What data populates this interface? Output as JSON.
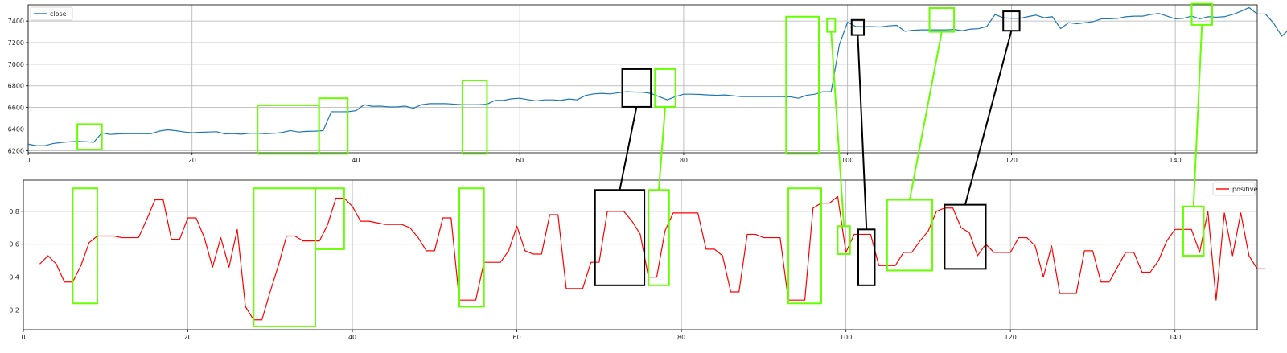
{
  "chart_data": [
    {
      "type": "line",
      "xlim": [
        0,
        150
      ],
      "ylim": [
        6180,
        7550
      ],
      "xticks": [
        0,
        20,
        40,
        60,
        80,
        100,
        120,
        140
      ],
      "yticks": [
        6200,
        6400,
        6600,
        6800,
        7000,
        7200,
        7400
      ],
      "grid": true,
      "legend_position": "top-left",
      "series": [
        {
          "name": "close",
          "color": "#1f77b4",
          "values": [
            6260,
            6245,
            6245,
            6265,
            6275,
            6282,
            6285,
            6283,
            6278,
            6365,
            6350,
            6355,
            6358,
            6357,
            6358,
            6357,
            6380,
            6392,
            6385,
            6373,
            6365,
            6370,
            6372,
            6375,
            6355,
            6358,
            6352,
            6360,
            6360,
            6357,
            6360,
            6368,
            6385,
            6372,
            6378,
            6380,
            6385,
            6560,
            6560,
            6560,
            6570,
            6625,
            6610,
            6612,
            6605,
            6605,
            6612,
            6592,
            6625,
            6635,
            6635,
            6635,
            6630,
            6625,
            6625,
            6625,
            6630,
            6665,
            6665,
            6680,
            6685,
            6672,
            6660,
            6670,
            6670,
            6665,
            6678,
            6670,
            6710,
            6725,
            6730,
            6725,
            6735,
            6745,
            6742,
            6740,
            6730,
            6700,
            6670,
            6700,
            6722,
            6722,
            6720,
            6715,
            6712,
            6715,
            6708,
            6700,
            6700,
            6700,
            6700,
            6700,
            6700,
            6698,
            6685,
            6712,
            6722,
            6745,
            6745,
            7180,
            7390,
            7350,
            7348,
            7348,
            7345,
            7355,
            7360,
            7305,
            7315,
            7318,
            7318,
            7318,
            7318,
            7322,
            7310,
            7325,
            7330,
            7350,
            7460,
            7430,
            7425,
            7425,
            7440,
            7455,
            7430,
            7440,
            7330,
            7385,
            7375,
            7385,
            7395,
            7420,
            7420,
            7425,
            7440,
            7445,
            7445,
            7460,
            7470,
            7445,
            7420,
            7425,
            7445,
            7420,
            7440,
            7435,
            7440,
            7460,
            7490,
            7525,
            7465,
            7465,
            7380,
            7260,
            7330,
            7328
          ]
        }
      ]
    },
    {
      "type": "line",
      "xlim": [
        0,
        150
      ],
      "ylim": [
        0.08,
        0.99
      ],
      "xticks": [
        0,
        20,
        40,
        60,
        80,
        100,
        120,
        140
      ],
      "yticks": [
        0.2,
        0.4,
        0.6,
        0.8
      ],
      "grid": true,
      "legend_position": "top-right",
      "series": [
        {
          "name": "positive",
          "color": "#ff0000",
          "x_start": 2,
          "values": [
            0.48,
            0.53,
            0.48,
            0.37,
            0.37,
            0.47,
            0.61,
            0.65,
            0.65,
            0.65,
            0.64,
            0.64,
            0.64,
            0.75,
            0.87,
            0.87,
            0.63,
            0.63,
            0.76,
            0.76,
            0.64,
            0.46,
            0.64,
            0.46,
            0.69,
            0.22,
            0.14,
            0.14,
            0.31,
            0.47,
            0.65,
            0.65,
            0.62,
            0.62,
            0.62,
            0.72,
            0.88,
            0.88,
            0.83,
            0.74,
            0.74,
            0.73,
            0.72,
            0.72,
            0.72,
            0.7,
            0.64,
            0.56,
            0.56,
            0.76,
            0.76,
            0.26,
            0.26,
            0.26,
            0.49,
            0.49,
            0.49,
            0.56,
            0.71,
            0.56,
            0.54,
            0.54,
            0.78,
            0.78,
            0.33,
            0.33,
            0.33,
            0.49,
            0.49,
            0.8,
            0.8,
            0.8,
            0.74,
            0.66,
            0.4,
            0.4,
            0.68,
            0.79,
            0.79,
            0.79,
            0.79,
            0.57,
            0.57,
            0.53,
            0.31,
            0.31,
            0.66,
            0.66,
            0.64,
            0.64,
            0.64,
            0.26,
            0.26,
            0.26,
            0.82,
            0.85,
            0.85,
            0.89,
            0.55,
            0.66,
            0.66,
            0.66,
            0.47,
            0.47,
            0.47,
            0.55,
            0.55,
            0.62,
            0.68,
            0.8,
            0.82,
            0.82,
            0.7,
            0.67,
            0.53,
            0.6,
            0.55,
            0.55,
            0.55,
            0.64,
            0.64,
            0.59,
            0.4,
            0.59,
            0.3,
            0.3,
            0.3,
            0.56,
            0.56,
            0.37,
            0.37,
            0.46,
            0.55,
            0.55,
            0.43,
            0.43,
            0.5,
            0.62,
            0.69,
            0.69,
            0.69,
            0.55,
            0.8,
            0.26,
            0.79,
            0.53,
            0.79,
            0.53,
            0.45,
            0.45
          ]
        }
      ]
    }
  ],
  "annotations": [
    {
      "color": "#66ff00",
      "top": [
        6,
        9,
        6210,
        6445
      ],
      "bottom": [
        6,
        9,
        0.24,
        0.94
      ]
    },
    {
      "color": "#66ff00",
      "top": [
        28,
        35.5,
        6170,
        6620
      ],
      "bottom": [
        28,
        35.5,
        0.1,
        0.94
      ]
    },
    {
      "color": "#66ff00",
      "top": [
        35.5,
        39,
        6170,
        6685
      ],
      "bottom": [
        35.5,
        39,
        0.57,
        0.94
      ]
    },
    {
      "color": "#66ff00",
      "top": [
        53,
        56,
        6170,
        6850
      ],
      "bottom": [
        53,
        56,
        0.22,
        0.94
      ]
    },
    {
      "color": "#000000",
      "top": [
        72.5,
        76,
        6605,
        6955
      ],
      "bottom": [
        69.5,
        75.5,
        0.35,
        0.93
      ],
      "connector": true
    },
    {
      "color": "#66ff00",
      "top": [
        76.5,
        79,
        6605,
        6955
      ],
      "bottom": [
        76,
        78.5,
        0.35,
        0.93
      ],
      "connector": true
    },
    {
      "color": "#66ff00",
      "top": [
        92.5,
        96.5,
        6170,
        7440
      ],
      "bottom": [
        93,
        97,
        0.24,
        0.94
      ]
    },
    {
      "color": "#66ff00",
      "top": [
        97.5,
        98.5,
        7300,
        7420
      ],
      "bottom": [
        99,
        100.5,
        0.54,
        0.71
      ],
      "connector": true
    },
    {
      "color": "#000000",
      "top": [
        100.5,
        102,
        7270,
        7410
      ],
      "bottom": [
        101.5,
        103.5,
        0.35,
        0.69
      ],
      "connector": true
    },
    {
      "color": "#66ff00",
      "top": [
        110,
        113,
        7300,
        7520
      ],
      "bottom": [
        105,
        110.5,
        0.44,
        0.87
      ],
      "connector": true
    },
    {
      "color": "#000000",
      "top": [
        119,
        121,
        7310,
        7490
      ],
      "bottom": [
        112,
        117,
        0.45,
        0.84
      ],
      "connector": true
    },
    {
      "color": "#66ff00",
      "top": [
        142,
        144.5,
        7365,
        7560
      ],
      "bottom": [
        141,
        143.5,
        0.53,
        0.83
      ],
      "connector": true
    }
  ]
}
